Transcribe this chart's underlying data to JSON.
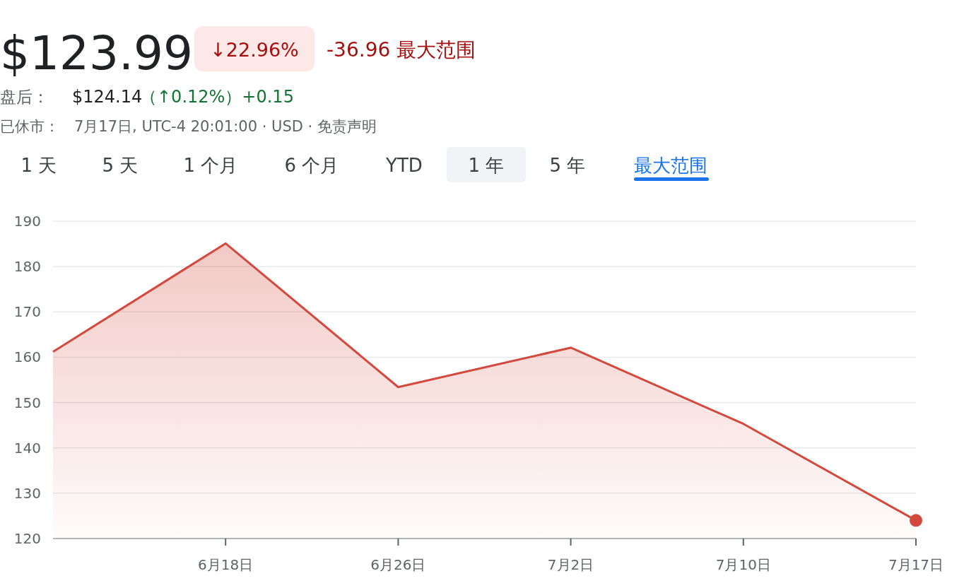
{
  "chart_data": {
    "type": "area",
    "title": "$123.99",
    "annotations": [
      "↓22.96%",
      "-36.96 最大范围",
      "盘后：",
      "$124.14",
      "（↑0.12%）+0.15",
      "已休市：",
      "7月17日, UTC-4 20:01:00 · USD · 免责声明",
      "1 天",
      "5 天",
      "1 个月",
      "6 个月",
      "YTD",
      "1 年",
      "5 年",
      "最大范围"
    ],
    "categories": [
      null,
      "6月18日",
      "6月26日",
      "7月2日",
      "7月10日",
      "7月17日"
    ],
    "series": [
      {
        "color": "#d4493d",
        "values": [
          161.2,
          185.1,
          153.4,
          162.1,
          145.3,
          124.0
        ]
      }
    ],
    "ylim": [
      120,
      190
    ],
    "yticks": [
      120,
      130,
      140,
      150,
      160,
      170,
      180,
      190
    ],
    "grid": "y"
  }
}
